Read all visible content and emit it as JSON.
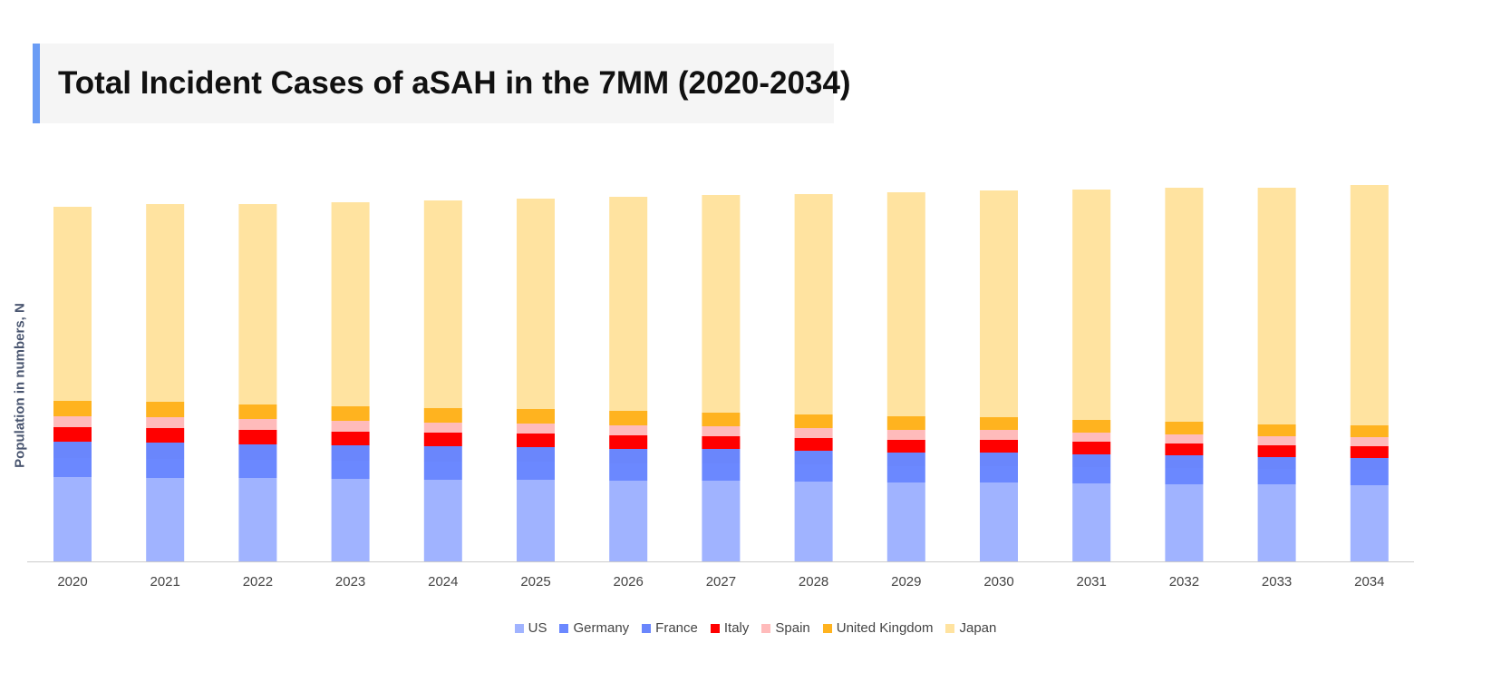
{
  "chart_data": {
    "type": "bar",
    "stacked": true,
    "title": "Total Incident Cases of aSAH in the 7MM (2020-2034)",
    "xlabel": "",
    "ylabel": "Population in numbers, N",
    "ylim": [
      0,
      420
    ],
    "grid": false,
    "legend_position": "bottom",
    "categories": [
      "2020",
      "2021",
      "2022",
      "2023",
      "2024",
      "2025",
      "2026",
      "2027",
      "2028",
      "2029",
      "2030",
      "2031",
      "2032",
      "2033",
      "2034"
    ],
    "series": [
      {
        "name": "US",
        "color": "#a0b3ff",
        "values": [
          93,
          92,
          92,
          91,
          90,
          90,
          89,
          89,
          88,
          87,
          87,
          86,
          85,
          85,
          84
        ]
      },
      {
        "name": "Germany",
        "color": "#6b88ff",
        "values": [
          21,
          21,
          20,
          20,
          20,
          20,
          19,
          19,
          19,
          18,
          18,
          18,
          18,
          17,
          17
        ]
      },
      {
        "name": "France",
        "color": "#6a86fc",
        "values": [
          18,
          18,
          17,
          17,
          17,
          16,
          16,
          16,
          15,
          15,
          15,
          14,
          14,
          13,
          13
        ]
      },
      {
        "name": "Italy",
        "color": "#ff0000",
        "values": [
          16,
          16,
          16,
          15,
          15,
          15,
          15,
          14,
          14,
          14,
          14,
          14,
          13,
          13,
          13
        ]
      },
      {
        "name": "Spain",
        "color": "#ffbbbb",
        "values": [
          12,
          12,
          12,
          12,
          11,
          11,
          11,
          11,
          11,
          11,
          11,
          10,
          10,
          10,
          10
        ]
      },
      {
        "name": "United Kingdom",
        "color": "#ffb31f",
        "values": [
          17,
          17,
          16,
          16,
          16,
          16,
          16,
          15,
          15,
          15,
          14,
          14,
          14,
          13,
          13
        ]
      },
      {
        "name": "Japan",
        "color": "#ffe3a0",
        "values": [
          214,
          218,
          221,
          225,
          229,
          232,
          236,
          240,
          243,
          247,
          250,
          254,
          258,
          261,
          265
        ]
      }
    ]
  }
}
